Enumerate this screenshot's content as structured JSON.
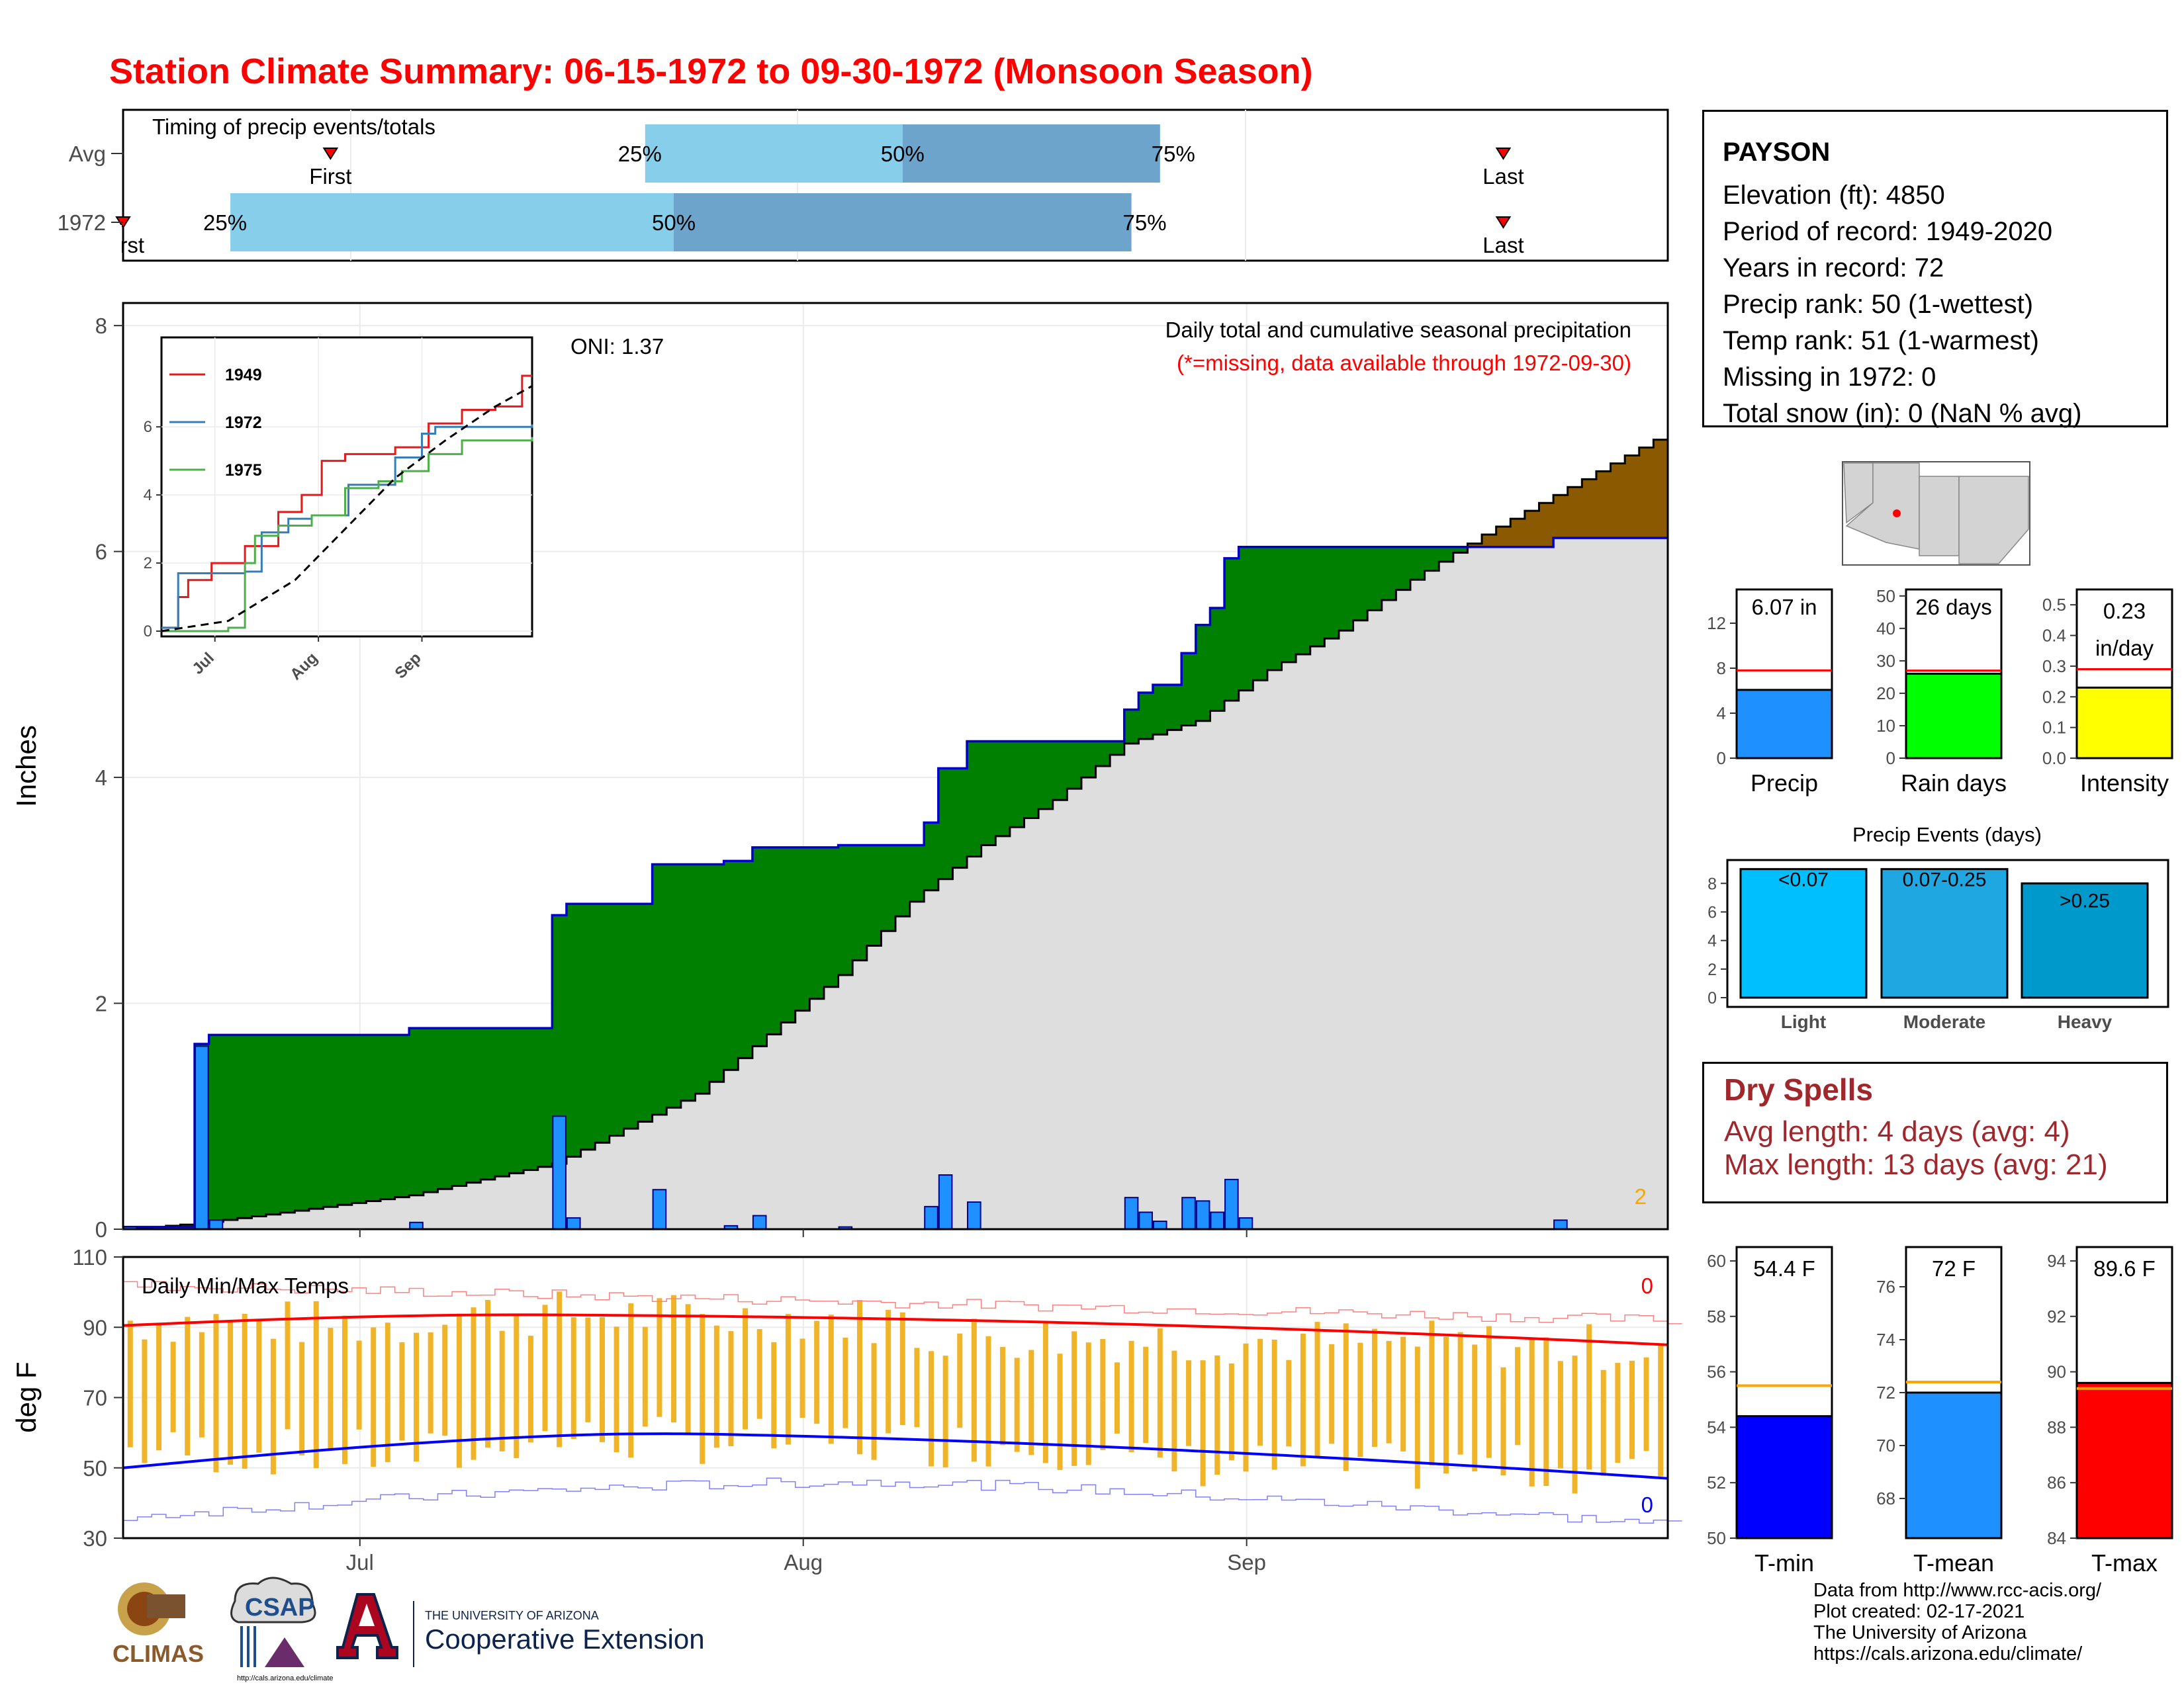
{
  "title": "Station Climate Summary: 06-15-1972 to 09-30-1972 (Monsoon Season)",
  "timing": {
    "label": "Timing of precip events/totals",
    "rows": [
      {
        "name": "Avg",
        "first": "06-29",
        "last": "09-19",
        "p25": "07-21",
        "p50": "08-08",
        "p75": "08-26",
        "first_label": "First",
        "last_label": "Last"
      },
      {
        "name": "1972",
        "first": "06-15",
        "last": "09-19",
        "p25": "06-22",
        "p50": "07-23",
        "p75": "08-24",
        "first_label": "First",
        "last_label": "Last"
      }
    ],
    "pct_labels": [
      "25%",
      "50%",
      "75%"
    ]
  },
  "precip_panel": {
    "ylabel": "Inches",
    "oni": "ONI: 1.37",
    "subtitle": "Daily total and cumulative seasonal precipitation",
    "missing_note": "(*=missing, data available through 1972-09-30)",
    "corner_count": "2",
    "x_ticks": [
      "Jul",
      "Aug",
      "Sep"
    ],
    "y_ticks": [
      "0",
      "2",
      "4",
      "6",
      "8"
    ]
  },
  "inset": {
    "legend": [
      "1949",
      "1972",
      "1975"
    ],
    "x_ticks": [
      "Jul",
      "Aug",
      "Sep"
    ],
    "y_ticks": [
      "0",
      "2",
      "4",
      "6"
    ]
  },
  "temp_panel": {
    "title": "Daily Min/Max Temps",
    "ylabel": "deg F",
    "y_ticks": [
      "30",
      "50",
      "70",
      "90",
      "110"
    ],
    "count_max": "0",
    "count_min": "0",
    "x_ticks": [
      "Jul",
      "Aug",
      "Sep"
    ]
  },
  "station": {
    "name": "PAYSON",
    "elevation": "Elevation (ft): 4850",
    "period": "Period of record: 1949-2020",
    "years": "Years in record: 72",
    "precip_rank": "Precip rank: 50 (1-wettest)",
    "temp_rank": "Temp rank: 51 (1-warmest)",
    "missing": "Missing in 1972: 0",
    "snow": "Total snow (in): 0 (NaN % avg)"
  },
  "summary_bars": {
    "precip": {
      "label": "Precip",
      "value_text": "6.07 in",
      "value": 6.07,
      "avg": 7.8,
      "ymax": 15,
      "ticks": [
        "0",
        "4",
        "8",
        "12"
      ]
    },
    "rain_days": {
      "label": "Rain days",
      "value_text": "26 days",
      "value": 26,
      "avg": 27,
      "ymax": 52,
      "ticks": [
        "0",
        "10",
        "20",
        "30",
        "40",
        "50"
      ]
    },
    "intensity": {
      "label": "Intensity",
      "value_text": "0.23",
      "value_unit": "in/day",
      "value": 0.23,
      "avg": 0.29,
      "ymax": 0.55,
      "ticks": [
        "0.0",
        "0.1",
        "0.2",
        "0.3",
        "0.4",
        "0.5"
      ]
    }
  },
  "events": {
    "title": "Precip Events (days)",
    "categories": [
      "Light",
      "Moderate",
      "Heavy"
    ],
    "bin_labels": [
      "<0.07",
      "0.07-0.25",
      ">0.25"
    ],
    "values": [
      9,
      9,
      8
    ],
    "ticks": [
      "0",
      "2",
      "4",
      "6",
      "8"
    ],
    "colors": [
      "#00bfff",
      "#1ea7e0",
      "#0099cc"
    ]
  },
  "dry_spells": {
    "title": "Dry Spells",
    "avg": "Avg length: 4 days (avg: 4)",
    "max": "Max length: 13 days (avg: 21)"
  },
  "temp_bars": {
    "tmin": {
      "label": "T-min",
      "value_text": "54.4 F",
      "value": 54.4,
      "avg": 55.5,
      "ymin": 50,
      "ymax": 60.5,
      "ticks": [
        "50",
        "52",
        "54",
        "56",
        "58",
        "60"
      ],
      "color": "#0000ff"
    },
    "tmean": {
      "label": "T-mean",
      "value_text": "72 F",
      "value": 72,
      "avg": 72.4,
      "ymin": 66.5,
      "ymax": 77.5,
      "ticks": [
        "68",
        "70",
        "72",
        "74",
        "76"
      ],
      "color": "#1e90ff"
    },
    "tmax": {
      "label": "T-max",
      "value_text": "89.6 F",
      "value": 89.6,
      "avg": 89.4,
      "ymin": 84,
      "ymax": 94.5,
      "ticks": [
        "84",
        "86",
        "88",
        "90",
        "92",
        "94"
      ],
      "color": "#ff0000"
    }
  },
  "footer": {
    "line1": "Data from http://www.rcc-acis.org/",
    "line2": "Plot created: 02-17-2021",
    "line3": "The University of Arizona",
    "line4": "https://cals.arizona.edu/climate/"
  },
  "logos": {
    "climas": "CLIMAS",
    "csap": "CSAP",
    "csap_url": "http://cals.arizona.edu/climate",
    "ua_small": "THE UNIVERSITY OF ARIZONA",
    "ua_ext": "Cooperative Extension"
  },
  "chart_data": {
    "type": "area",
    "title": "Daily total and cumulative seasonal precipitation",
    "ylabel": "Inches",
    "ylim": [
      0,
      8.2
    ],
    "daily_precip": [
      {
        "date": "1972-06-15",
        "in": 0.02
      },
      {
        "date": "1972-06-20",
        "in": 1.62
      },
      {
        "date": "1972-06-21",
        "in": 0.08
      },
      {
        "date": "1972-07-05",
        "in": 0.06
      },
      {
        "date": "1972-07-15",
        "in": 1.0
      },
      {
        "date": "1972-07-16",
        "in": 0.1
      },
      {
        "date": "1972-07-22",
        "in": 0.35
      },
      {
        "date": "1972-07-27",
        "in": 0.03
      },
      {
        "date": "1972-07-29",
        "in": 0.12
      },
      {
        "date": "1972-08-04",
        "in": 0.02
      },
      {
        "date": "1972-08-10",
        "in": 0.2
      },
      {
        "date": "1972-08-11",
        "in": 0.48
      },
      {
        "date": "1972-08-13",
        "in": 0.24
      },
      {
        "date": "1972-08-24",
        "in": 0.28
      },
      {
        "date": "1972-08-25",
        "in": 0.15
      },
      {
        "date": "1972-08-26",
        "in": 0.07
      },
      {
        "date": "1972-08-28",
        "in": 0.28
      },
      {
        "date": "1972-08-29",
        "in": 0.25
      },
      {
        "date": "1972-08-30",
        "in": 0.15
      },
      {
        "date": "1972-08-31",
        "in": 0.44
      },
      {
        "date": "1972-09-01",
        "in": 0.1
      },
      {
        "date": "1972-09-23",
        "in": 0.08
      }
    ],
    "avg_cumulative": [
      [
        0,
        0.0
      ],
      [
        5,
        0.05
      ],
      [
        10,
        0.13
      ],
      [
        20,
        0.3
      ],
      [
        30,
        0.58
      ],
      [
        40,
        1.2
      ],
      [
        50,
        2.25
      ],
      [
        55,
        2.9
      ],
      [
        60,
        3.4
      ],
      [
        65,
        3.8
      ],
      [
        70,
        4.3
      ],
      [
        75,
        4.5
      ],
      [
        80,
        4.95
      ],
      [
        85,
        5.3
      ],
      [
        90,
        5.75
      ],
      [
        95,
        6.15
      ],
      [
        100,
        6.5
      ],
      [
        105,
        6.85
      ],
      [
        110,
        7.2
      ],
      [
        111,
        7.45
      ]
    ],
    "inset_series": [
      {
        "name": "1949",
        "color": "#e41a1c",
        "points": [
          [
            0,
            0.1
          ],
          [
            5,
            1
          ],
          [
            8,
            1.5
          ],
          [
            15,
            2
          ],
          [
            25,
            2.5
          ],
          [
            35,
            3.5
          ],
          [
            42,
            4
          ],
          [
            48,
            5
          ],
          [
            55,
            5.2
          ],
          [
            70,
            5.4
          ],
          [
            80,
            6.1
          ],
          [
            90,
            6.5
          ],
          [
            100,
            6.6
          ],
          [
            108,
            7.5
          ]
        ]
      },
      {
        "name": "1972",
        "color": "#377eb8",
        "points": [
          [
            0,
            0.1
          ],
          [
            5,
            1.7
          ],
          [
            25,
            1.75
          ],
          [
            30,
            2.9
          ],
          [
            38,
            3.3
          ],
          [
            45,
            3.4
          ],
          [
            56,
            4.3
          ],
          [
            70,
            5.1
          ],
          [
            78,
            5.8
          ],
          [
            82,
            6.0
          ],
          [
            111,
            6.07
          ]
        ]
      },
      {
        "name": "1975",
        "color": "#4daf4a",
        "points": [
          [
            0,
            0
          ],
          [
            20,
            0.1
          ],
          [
            25,
            2.0
          ],
          [
            28,
            2.8
          ],
          [
            35,
            3.1
          ],
          [
            45,
            3.4
          ],
          [
            55,
            4.2
          ],
          [
            65,
            4.4
          ],
          [
            72,
            4.7
          ],
          [
            80,
            5.2
          ],
          [
            90,
            5.6
          ],
          [
            111,
            5.7
          ]
        ]
      }
    ],
    "inset_avg_dashed": [
      [
        0,
        0
      ],
      [
        20,
        0.3
      ],
      [
        40,
        1.5
      ],
      [
        55,
        3
      ],
      [
        70,
        4.5
      ],
      [
        85,
        5.6
      ],
      [
        100,
        6.6
      ],
      [
        111,
        7.2
      ]
    ]
  }
}
